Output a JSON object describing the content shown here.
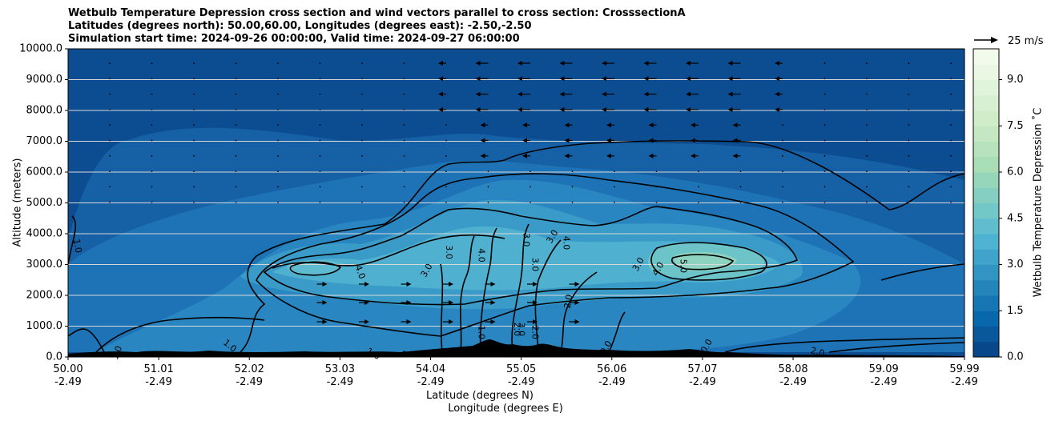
{
  "title_lines": [
    "Wetbulb Temperature Depression cross section and wind vectors parallel to cross section: CrosssectionA",
    "Latitudes (degrees north): 50.00,60.00, Longitudes (degrees east): -2.50,-2.50",
    "Simulation start time: 2024-09-26 00:00:00, Valid time: 2024-09-27 06:00:00"
  ],
  "chart_data": {
    "type": "heatmap",
    "title": "Wetbulb Temperature Depression cross section and wind vectors parallel to cross section: CrosssectionA",
    "ylabel": "Altitude (meters)",
    "xlabel_lines": [
      "Latitude (degrees N)",
      "Longitude (degrees E)"
    ],
    "ylim": [
      0,
      10000
    ],
    "yticks": [
      "0.0",
      "1000.0",
      "2000.0",
      "3000.0",
      "4000.0",
      "5000.0",
      "6000.0",
      "7000.0",
      "8000.0",
      "9000.0",
      "10000.0"
    ],
    "xticks": [
      {
        "lat": "50.00",
        "lon": "-2.49"
      },
      {
        "lat": "51.01",
        "lon": "-2.49"
      },
      {
        "lat": "52.02",
        "lon": "-2.49"
      },
      {
        "lat": "53.03",
        "lon": "-2.49"
      },
      {
        "lat": "54.04",
        "lon": "-2.49"
      },
      {
        "lat": "55.05",
        "lon": "-2.49"
      },
      {
        "lat": "56.06",
        "lon": "-2.49"
      },
      {
        "lat": "57.07",
        "lon": "-2.49"
      },
      {
        "lat": "58.08",
        "lon": "-2.49"
      },
      {
        "lat": "59.09",
        "lon": "-2.49"
      },
      {
        "lat": "59.99",
        "lon": "-2.49"
      }
    ],
    "grid": "horizontal",
    "colorbar": {
      "label": "Wetbulb Temperature Depression $^\\circ$C",
      "label_display": "Wetbulb Temperature Depression ˚C",
      "range": [
        0,
        10
      ],
      "ticks": [
        "0.0",
        "1.5",
        "3.0",
        "4.5",
        "6.0",
        "7.5",
        "9.0"
      ],
      "colormap": "GnBu_r"
    },
    "quiver_key": "25 m/s",
    "contour_labels": [
      {
        "text": "1.0",
        "lat": 50.1,
        "alt": 3600,
        "rot": 80
      },
      {
        "text": "1.0",
        "lat": 50.55,
        "alt": 130,
        "rot": -70
      },
      {
        "text": "1.0",
        "lat": 51.8,
        "alt": 350,
        "rot": 40
      },
      {
        "text": "1.0",
        "lat": 53.8,
        "alt": 60,
        "rot": 0
      },
      {
        "text": "1.0",
        "lat": 53.4,
        "alt": 90,
        "rot": 30
      },
      {
        "text": "4.0",
        "lat": 53.25,
        "alt": 2750,
        "rot": 70
      },
      {
        "text": "3.0",
        "lat": 54.0,
        "alt": 2800,
        "rot": -60
      },
      {
        "text": "3.0",
        "lat": 54.24,
        "alt": 3400,
        "rot": 90
      },
      {
        "text": "4.0",
        "lat": 54.6,
        "alt": 3300,
        "rot": 90
      },
      {
        "text": "3.0",
        "lat": 55.1,
        "alt": 3800,
        "rot": 90
      },
      {
        "text": "3.0",
        "lat": 55.4,
        "alt": 3900,
        "rot": -60
      },
      {
        "text": "4.0",
        "lat": 55.55,
        "alt": 3700,
        "rot": 90
      },
      {
        "text": "3.0",
        "lat": 55.2,
        "alt": 3000,
        "rot": 90
      },
      {
        "text": "2.0",
        "lat": 55.58,
        "alt": 1800,
        "rot": -80
      },
      {
        "text": "1.0",
        "lat": 54.6,
        "alt": 800,
        "rot": 90
      },
      {
        "text": "2.0",
        "lat": 55.0,
        "alt": 900,
        "rot": 90
      },
      {
        "text": "3.0",
        "lat": 55.05,
        "alt": 900,
        "rot": 90
      },
      {
        "text": "2.0",
        "lat": 55.2,
        "alt": 800,
        "rot": 90
      },
      {
        "text": "0.0",
        "lat": 56.0,
        "alt": 300,
        "rot": -60
      },
      {
        "text": "3.0",
        "lat": 56.36,
        "alt": 3000,
        "rot": -60
      },
      {
        "text": "4.0",
        "lat": 56.58,
        "alt": 2850,
        "rot": -60
      },
      {
        "text": "5.0",
        "lat": 56.85,
        "alt": 2950,
        "rot": 90
      },
      {
        "text": "0.0",
        "lat": 57.12,
        "alt": 350,
        "rot": -60
      },
      {
        "text": "2.0",
        "lat": 58.35,
        "alt": 150,
        "rot": 15
      }
    ]
  }
}
